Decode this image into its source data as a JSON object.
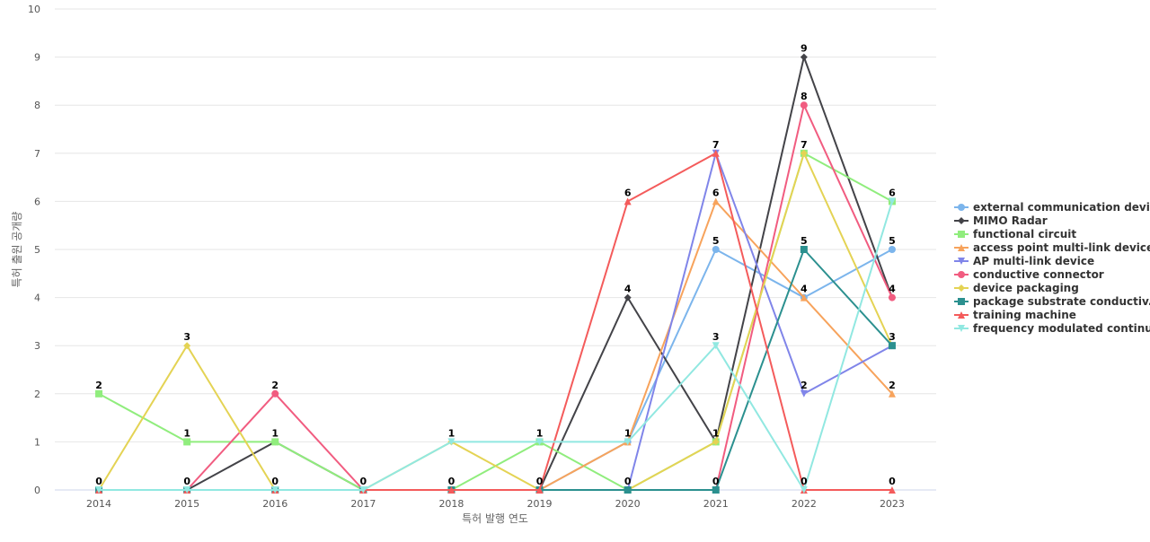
{
  "chart_data": {
    "type": "line",
    "title": "",
    "xlabel": "특허 발행 연도",
    "ylabel": "특허 출원 공개량",
    "ylim": [
      0,
      10
    ],
    "yticks": [
      0,
      1,
      2,
      3,
      4,
      5,
      6,
      7,
      8,
      9,
      10
    ],
    "grid": true,
    "legend_position": "right",
    "categories": [
      "2014",
      "2015",
      "2016",
      "2017",
      "2018",
      "2019",
      "2020",
      "2021",
      "2022",
      "2023"
    ],
    "series": [
      {
        "name": "external communication device",
        "color": "#7cb5ec",
        "marker": "circle",
        "values": [
          0,
          0,
          0,
          0,
          0,
          0,
          1,
          5,
          4,
          5
        ]
      },
      {
        "name": "MIMO Radar",
        "color": "#434348",
        "marker": "diamond",
        "values": [
          0,
          0,
          1,
          0,
          0,
          0,
          4,
          1,
          9,
          4
        ]
      },
      {
        "name": "functional circuit",
        "color": "#90ed7d",
        "marker": "square",
        "values": [
          2,
          1,
          1,
          0,
          0,
          1,
          0,
          1,
          7,
          6
        ]
      },
      {
        "name": "access point multi-link device",
        "color": "#f7a35c",
        "marker": "triangle",
        "values": [
          0,
          0,
          0,
          0,
          0,
          0,
          1,
          6,
          4,
          2
        ]
      },
      {
        "name": "AP multi-link device",
        "color": "#8085e9",
        "marker": "triangle-down",
        "values": [
          0,
          0,
          0,
          0,
          0,
          0,
          0,
          7,
          2,
          3
        ]
      },
      {
        "name": "conductive connector",
        "color": "#f15c80",
        "marker": "circle",
        "values": [
          0,
          0,
          2,
          0,
          0,
          0,
          0,
          0,
          8,
          4
        ]
      },
      {
        "name": "device packaging",
        "color": "#e4d354",
        "marker": "diamond",
        "values": [
          0,
          3,
          0,
          0,
          1,
          0,
          0,
          1,
          7,
          3
        ]
      },
      {
        "name": "package substrate conductiv...",
        "color": "#2b908f",
        "marker": "square",
        "values": [
          0,
          0,
          0,
          0,
          0,
          0,
          0,
          0,
          5,
          3
        ]
      },
      {
        "name": "training machine",
        "color": "#f45b5b",
        "marker": "triangle",
        "values": [
          0,
          0,
          0,
          0,
          0,
          0,
          6,
          7,
          0,
          0
        ]
      },
      {
        "name": "frequency modulated continu...",
        "color": "#91e8e1",
        "marker": "triangle-down",
        "values": [
          0,
          0,
          0,
          0,
          1,
          1,
          1,
          3,
          0,
          6
        ]
      }
    ]
  }
}
